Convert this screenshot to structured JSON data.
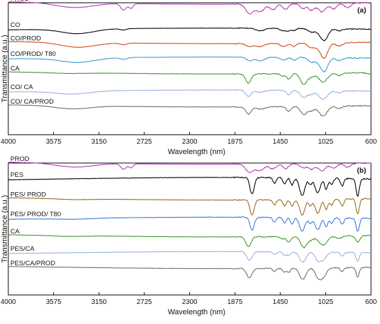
{
  "chart_data": [
    {
      "type": "line",
      "panel_tag": "(a)",
      "xlabel": "Wavelength (nm)",
      "ylabel": "Transmittance (a.u.)",
      "xlim": [
        4000,
        600
      ],
      "x_reversed": true,
      "xticks": [
        4000,
        3575,
        3150,
        2725,
        2300,
        1875,
        1450,
        1025,
        600
      ],
      "grid": false,
      "series": [
        {
          "name": "PROD",
          "color": "#b23ab0",
          "offset": 0.86,
          "scale": 0.14,
          "bands": [
            [
              3380,
              0.25,
              170
            ],
            [
              2920,
              0.35,
              25
            ],
            [
              2850,
              0.25,
              20
            ],
            [
              1740,
              0.5,
              35
            ],
            [
              1640,
              0.4,
              40
            ],
            [
              1520,
              0.3,
              30
            ],
            [
              1400,
              0.3,
              25
            ],
            [
              1240,
              0.25,
              25
            ],
            [
              1160,
              0.35,
              30
            ],
            [
              1060,
              0.45,
              35
            ],
            [
              950,
              0.3,
              30
            ],
            [
              820,
              0.25,
              30
            ]
          ]
        },
        {
          "name": "CO",
          "color": "#000000",
          "offset": 0.7,
          "scale": 0.1,
          "bands": [
            [
              3350,
              0.35,
              150
            ],
            [
              2920,
              0.1,
              30
            ],
            [
              1640,
              0.2,
              40
            ],
            [
              1420,
              0.2,
              30
            ],
            [
              1370,
              0.15,
              20
            ],
            [
              1320,
              0.15,
              20
            ],
            [
              1160,
              0.25,
              30
            ],
            [
              1060,
              0.5,
              40
            ],
            [
              1030,
              0.5,
              30
            ],
            [
              900,
              0.15,
              30
            ]
          ]
        },
        {
          "name": "CO/PROD",
          "color": "#d04a1c",
          "offset": 0.58,
          "scale": 0.12,
          "bands": [
            [
              3350,
              0.3,
              160
            ],
            [
              2920,
              0.1,
              30
            ],
            [
              1740,
              0.2,
              30
            ],
            [
              1640,
              0.2,
              40
            ],
            [
              1420,
              0.2,
              30
            ],
            [
              1320,
              0.2,
              20
            ],
            [
              1160,
              0.3,
              30
            ],
            [
              1060,
              0.55,
              40
            ],
            [
              1030,
              0.5,
              30
            ],
            [
              900,
              0.2,
              30
            ]
          ]
        },
        {
          "name": "CO/PROD/  T80",
          "color": "#3a9bd4",
          "offset": 0.47,
          "scale": 0.11,
          "bands": [
            [
              3350,
              0.3,
              160
            ],
            [
              2920,
              0.12,
              30
            ],
            [
              1740,
              0.25,
              30
            ],
            [
              1640,
              0.25,
              40
            ],
            [
              1420,
              0.2,
              30
            ],
            [
              1320,
              0.2,
              20
            ],
            [
              1160,
              0.3,
              30
            ],
            [
              1060,
              0.55,
              40
            ],
            [
              1030,
              0.5,
              30
            ],
            [
              900,
              0.2,
              30
            ]
          ]
        },
        {
          "name": "CA",
          "color": "#3a9a2a",
          "offset": 0.35,
          "scale": 0.12,
          "bands": [
            [
              3450,
              0.05,
              150
            ],
            [
              1750,
              0.6,
              25
            ],
            [
              1430,
              0.15,
              20
            ],
            [
              1370,
              0.35,
              20
            ],
            [
              1230,
              0.7,
              30
            ],
            [
              1160,
              0.2,
              25
            ],
            [
              1050,
              0.55,
              40
            ],
            [
              900,
              0.15,
              25
            ],
            [
              600,
              0.1,
              30
            ]
          ]
        },
        {
          "name": "CO/ CA",
          "color": "#9ab0e0",
          "offset": 0.22,
          "scale": 0.11,
          "bands": [
            [
              3400,
              0.2,
              160
            ],
            [
              1750,
              0.45,
              25
            ],
            [
              1640,
              0.15,
              40
            ],
            [
              1370,
              0.3,
              20
            ],
            [
              1230,
              0.5,
              30
            ],
            [
              1160,
              0.25,
              25
            ],
            [
              1050,
              0.6,
              40
            ],
            [
              900,
              0.15,
              25
            ]
          ]
        },
        {
          "name": "CO/ CA/PROD",
          "color": "#6e6e6e",
          "offset": 0.1,
          "scale": 0.12,
          "bands": [
            [
              3400,
              0.2,
              160
            ],
            [
              1750,
              0.45,
              25
            ],
            [
              1640,
              0.15,
              40
            ],
            [
              1370,
              0.3,
              20
            ],
            [
              1230,
              0.5,
              30
            ],
            [
              1160,
              0.25,
              25
            ],
            [
              1050,
              0.6,
              40
            ],
            [
              900,
              0.15,
              25
            ]
          ]
        }
      ]
    },
    {
      "type": "line",
      "panel_tag": "(b)",
      "xlabel": "Wavelength (nm)",
      "ylabel": "Transmittance (a.u.)",
      "xlim": [
        4000,
        600
      ],
      "x_reversed": true,
      "xticks": [
        4000,
        3575,
        3150,
        2725,
        2300,
        1875,
        1450,
        1025,
        600
      ],
      "grid": false,
      "series": [
        {
          "name": "PROD",
          "color": "#b23ab0",
          "offset": 0.88,
          "scale": 0.12,
          "bands": [
            [
              3380,
              0.25,
              170
            ],
            [
              2920,
              0.35,
              25
            ],
            [
              2850,
              0.25,
              20
            ],
            [
              1740,
              0.5,
              35
            ],
            [
              1640,
              0.4,
              40
            ],
            [
              1520,
              0.3,
              30
            ],
            [
              1400,
              0.3,
              25
            ],
            [
              1240,
              0.25,
              25
            ],
            [
              1160,
              0.35,
              30
            ],
            [
              1060,
              0.45,
              35
            ],
            [
              950,
              0.3,
              30
            ],
            [
              820,
              0.25,
              30
            ]
          ]
        },
        {
          "name": "PES",
          "color": "#000000",
          "offset": 0.74,
          "scale": 0.14,
          "bands": [
            [
              1715,
              0.9,
              20
            ],
            [
              1505,
              0.3,
              15
            ],
            [
              1410,
              0.35,
              15
            ],
            [
              1340,
              0.4,
              15
            ],
            [
              1245,
              0.95,
              25
            ],
            [
              1170,
              0.35,
              15
            ],
            [
              1100,
              0.8,
              25
            ],
            [
              1020,
              0.6,
              15
            ],
            [
              970,
              0.35,
              15
            ],
            [
              870,
              0.4,
              15
            ],
            [
              725,
              0.95,
              15
            ]
          ]
        },
        {
          "name": "PES/ PROD",
          "color": "#9a6a1a",
          "offset": 0.6,
          "scale": 0.13,
          "bands": [
            [
              3380,
              0.05,
              160
            ],
            [
              1715,
              0.85,
              20
            ],
            [
              1505,
              0.3,
              15
            ],
            [
              1410,
              0.35,
              15
            ],
            [
              1340,
              0.4,
              15
            ],
            [
              1245,
              0.9,
              25
            ],
            [
              1170,
              0.35,
              15
            ],
            [
              1100,
              0.8,
              25
            ],
            [
              1020,
              0.6,
              15
            ],
            [
              970,
              0.35,
              15
            ],
            [
              870,
              0.4,
              15
            ],
            [
              725,
              0.9,
              15
            ]
          ]
        },
        {
          "name": "PES/ PROD/ T80",
          "color": "#3a7ad4",
          "offset": 0.46,
          "scale": 0.12,
          "bands": [
            [
              3380,
              0.05,
              160
            ],
            [
              1715,
              0.8,
              20
            ],
            [
              1505,
              0.3,
              15
            ],
            [
              1410,
              0.35,
              15
            ],
            [
              1340,
              0.4,
              15
            ],
            [
              1245,
              0.85,
              25
            ],
            [
              1170,
              0.35,
              15
            ],
            [
              1100,
              0.75,
              25
            ],
            [
              1020,
              0.55,
              15
            ],
            [
              970,
              0.35,
              15
            ],
            [
              870,
              0.4,
              15
            ],
            [
              725,
              0.85,
              15
            ]
          ]
        },
        {
          "name": "CA",
          "color": "#3a9a2a",
          "offset": 0.33,
          "scale": 0.12,
          "bands": [
            [
              3450,
              0.05,
              150
            ],
            [
              1750,
              0.6,
              25
            ],
            [
              1430,
              0.15,
              20
            ],
            [
              1370,
              0.35,
              20
            ],
            [
              1230,
              0.7,
              30
            ],
            [
              1160,
              0.2,
              25
            ],
            [
              1050,
              0.55,
              40
            ],
            [
              900,
              0.15,
              25
            ],
            [
              725,
              0.4,
              20
            ]
          ]
        },
        {
          "name": "PES/CA",
          "color": "#9ab0e0",
          "offset": 0.21,
          "scale": 0.11,
          "bands": [
            [
              1740,
              0.6,
              25
            ],
            [
              1505,
              0.2,
              15
            ],
            [
              1410,
              0.25,
              15
            ],
            [
              1370,
              0.25,
              15
            ],
            [
              1240,
              0.7,
              30
            ],
            [
              1100,
              0.5,
              25
            ],
            [
              1050,
              0.5,
              30
            ],
            [
              870,
              0.25,
              15
            ],
            [
              725,
              0.6,
              15
            ]
          ]
        },
        {
          "name": "PES/CA/PROD",
          "color": "#6e6e6e",
          "offset": 0.09,
          "scale": 0.12,
          "bands": [
            [
              1740,
              0.6,
              25
            ],
            [
              1505,
              0.2,
              15
            ],
            [
              1410,
              0.25,
              15
            ],
            [
              1370,
              0.25,
              15
            ],
            [
              1240,
              0.7,
              30
            ],
            [
              1100,
              0.5,
              25
            ],
            [
              1050,
              0.6,
              30
            ],
            [
              870,
              0.25,
              15
            ],
            [
              725,
              0.6,
              15
            ]
          ]
        }
      ]
    }
  ]
}
